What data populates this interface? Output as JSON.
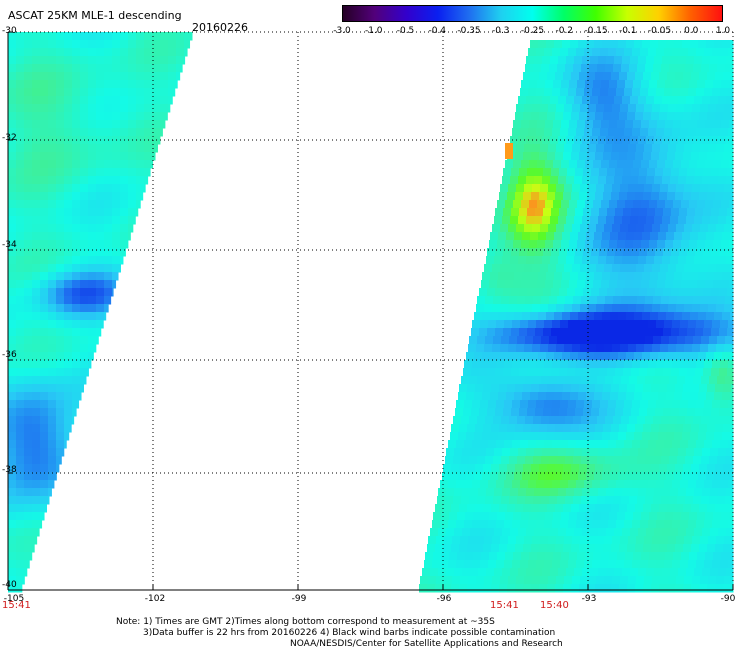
{
  "header": {
    "title": "ASCAT 25KM MLE-1 descending",
    "date": "20160226"
  },
  "colorbar": {
    "ticks": [
      "-3.0",
      "-1.0",
      "-0.5",
      "-0.4",
      "-0.35",
      "-0.3",
      "-0.25",
      "-0.2",
      "-0.15",
      "-0.1",
      "-0.05",
      "0.0",
      "1.0"
    ],
    "colors": [
      "#250025",
      "#52007a",
      "#3300cc",
      "#0a1ff0",
      "#1f6ef0",
      "#1fd0f0",
      "#00ffee",
      "#00ff66",
      "#40ff00",
      "#c8ff00",
      "#ffd000",
      "#ff6000",
      "#ff1010"
    ]
  },
  "map": {
    "lat_labels": [
      "-30",
      "-32",
      "-34",
      "-36",
      "-38",
      "-40"
    ],
    "lon_labels": [
      "-105",
      "-102",
      "-99",
      "-96",
      "-93",
      "-90"
    ],
    "swath_times": {
      "left": "15:41",
      "right_a": "15:41",
      "right_b": "15:40"
    }
  },
  "notes": {
    "line1": "Note: 1) Times are GMT 2)Times along bottom correspond to measurement at ~35S",
    "line2": "3)Data buffer is 22 hrs from 20160226 4) Black wind barbs indicate possible contamination",
    "line3": "NOAA/NESDIS/Center for Satellite Applications and Research"
  }
}
